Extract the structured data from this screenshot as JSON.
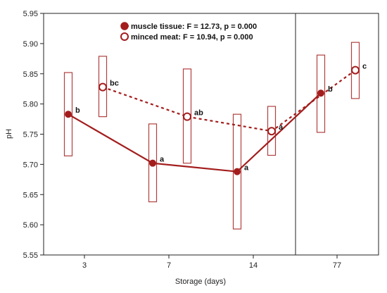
{
  "chart_data": {
    "type": "line",
    "xlabel": "Storage (days)",
    "ylabel": "pH",
    "categories": [
      "3",
      "7",
      "14",
      "77"
    ],
    "ylim": [
      5.55,
      5.95
    ],
    "yticks": [
      "5.55",
      "5.60",
      "5.65",
      "5.70",
      "5.75",
      "5.80",
      "5.85",
      "5.90",
      "5.95"
    ],
    "grid": false,
    "legend_position": "top-center",
    "series": [
      {
        "name": "muscle tissue: F = 12.73, p = 0.000",
        "color": "#a31d1d",
        "line_style": "solid",
        "marker": "filled-circle",
        "values": [
          5.783,
          5.702,
          5.688,
          5.818
        ],
        "ci_low": [
          5.714,
          5.638,
          5.593,
          5.753
        ],
        "ci_high": [
          5.852,
          5.767,
          5.783,
          5.881
        ],
        "letters": [
          "b",
          "a",
          "a",
          "b"
        ]
      },
      {
        "name": "minced meat: F = 10.94, p = 0.000",
        "color": "#a31d1d",
        "line_style": "dashed",
        "marker": "open-circle",
        "values": [
          5.828,
          5.779,
          5.755,
          5.856
        ],
        "ci_low": [
          5.779,
          5.702,
          5.715,
          5.809
        ],
        "ci_high": [
          5.879,
          5.858,
          5.796,
          5.902
        ],
        "letters": [
          "bc",
          "ab",
          "a",
          "c"
        ]
      }
    ]
  }
}
